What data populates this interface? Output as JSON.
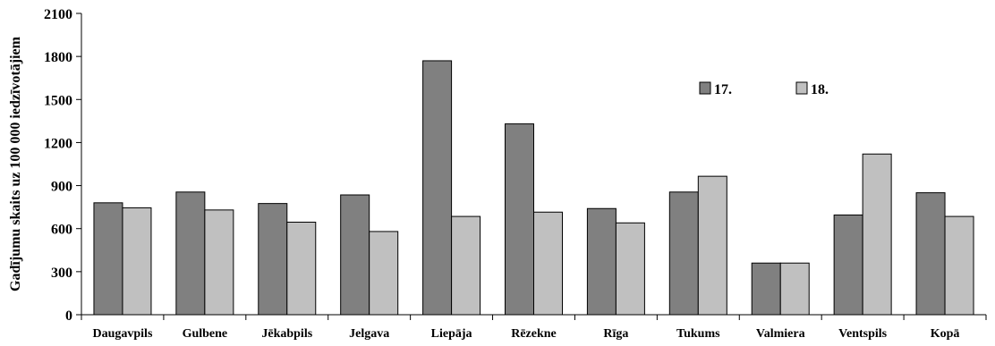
{
  "chart_data": {
    "type": "bar",
    "title": "",
    "xlabel": "",
    "ylabel": "Gadījumu skaits uz 100 000 iedzīvotājiem",
    "ylim": [
      0,
      2100
    ],
    "yticks": [
      0,
      300,
      600,
      900,
      1200,
      1500,
      1800,
      2100
    ],
    "grid": false,
    "legend_position": "upper-right",
    "categories": [
      "Daugavpils",
      "Gulbene",
      "Jēkabpils",
      "Jelgava",
      "Liepāja",
      "Rēzekne",
      "Rīga",
      "Tukums",
      "Valmiera",
      "Ventspils",
      "Kopā"
    ],
    "series": [
      {
        "name": "17.",
        "color": "#808080",
        "values": [
          780,
          855,
          775,
          835,
          1770,
          1330,
          740,
          855,
          360,
          695,
          850
        ]
      },
      {
        "name": "18.",
        "color": "#c0c0c0",
        "values": [
          745,
          730,
          645,
          580,
          685,
          715,
          640,
          965,
          360,
          1120,
          685
        ]
      }
    ]
  }
}
